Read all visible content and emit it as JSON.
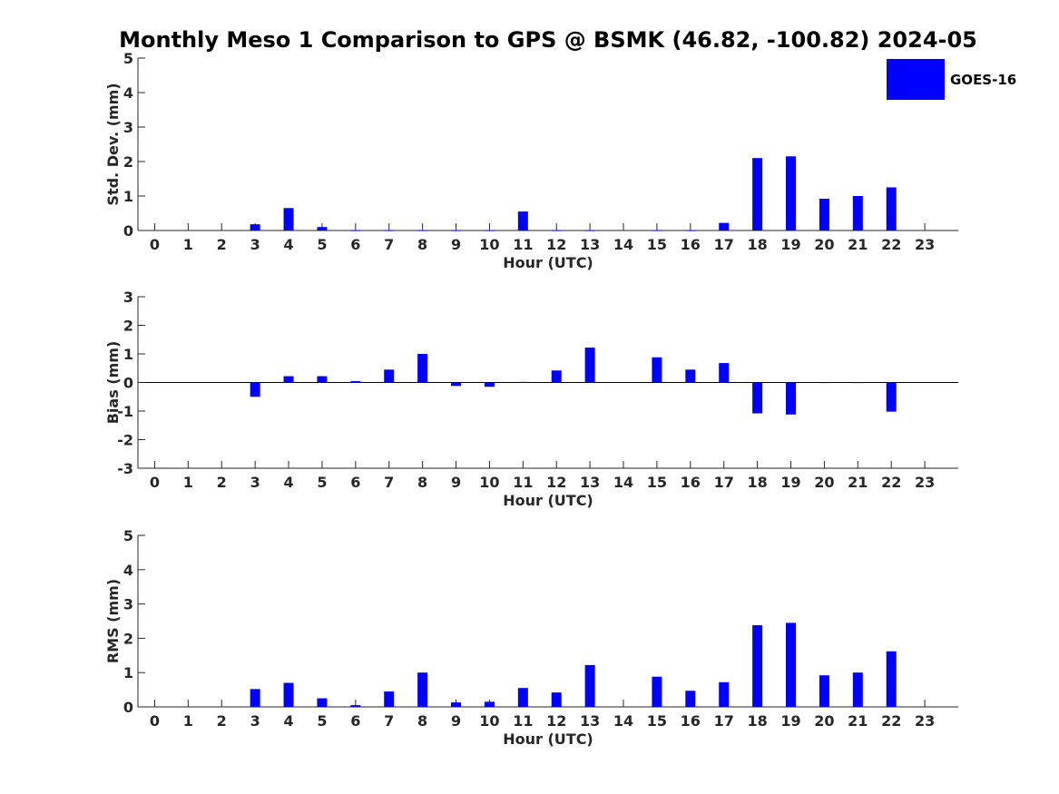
{
  "title": "Monthly Meso 1 Comparison to GPS @ BSMK (46.82, -100.82) 2024-05",
  "legend": {
    "label": "GOES-16",
    "position": "top-right"
  },
  "colors": {
    "bar": "#0000ff",
    "axis": "#262626",
    "zero_line": "#000000"
  },
  "chart_data": [
    {
      "type": "bar",
      "title": "Monthly Meso 1 Comparison to GPS @ BSMK (46.82, -100.82) 2024-05",
      "xlabel": "Hour (UTC)",
      "ylabel": "Std. Dev. (mm)",
      "ylim": [
        0,
        5
      ],
      "yticks": [
        "0",
        "1",
        "2",
        "3",
        "4",
        "5"
      ],
      "categories": [
        "0",
        "1",
        "2",
        "3",
        "4",
        "5",
        "6",
        "7",
        "8",
        "9",
        "10",
        "11",
        "12",
        "13",
        "14",
        "15",
        "16",
        "17",
        "18",
        "19",
        "20",
        "21",
        "22",
        "23"
      ],
      "series": [
        {
          "name": "GOES-16",
          "values": [
            null,
            null,
            null,
            0.18,
            0.65,
            0.1,
            0,
            0,
            0,
            0,
            0,
            0.55,
            0,
            0,
            null,
            0,
            0,
            0.22,
            2.1,
            2.15,
            0.92,
            1.0,
            1.25,
            null
          ]
        }
      ]
    },
    {
      "type": "bar",
      "xlabel": "Hour (UTC)",
      "ylabel": "Bias (mm)",
      "ylim": [
        -3,
        3
      ],
      "yticks": [
        "-3",
        "-2",
        "-1",
        "0",
        "1",
        "2",
        "3"
      ],
      "categories": [
        "0",
        "1",
        "2",
        "3",
        "4",
        "5",
        "6",
        "7",
        "8",
        "9",
        "10",
        "11",
        "12",
        "13",
        "14",
        "15",
        "16",
        "17",
        "18",
        "19",
        "20",
        "21",
        "22",
        "23"
      ],
      "series": [
        {
          "name": "GOES-16",
          "values": [
            null,
            null,
            null,
            -0.5,
            0.22,
            0.22,
            0.05,
            0.45,
            1.0,
            -0.12,
            -0.15,
            0.02,
            0.42,
            1.22,
            null,
            0.88,
            0.45,
            0.68,
            -1.08,
            -1.12,
            0,
            0,
            -1.02,
            null
          ]
        }
      ]
    },
    {
      "type": "bar",
      "xlabel": "Hour (UTC)",
      "ylabel": "RMS (mm)",
      "ylim": [
        0,
        5
      ],
      "yticks": [
        "0",
        "1",
        "2",
        "3",
        "4",
        "5"
      ],
      "categories": [
        "0",
        "1",
        "2",
        "3",
        "4",
        "5",
        "6",
        "7",
        "8",
        "9",
        "10",
        "11",
        "12",
        "13",
        "14",
        "15",
        "16",
        "17",
        "18",
        "19",
        "20",
        "21",
        "22",
        "23"
      ],
      "series": [
        {
          "name": "GOES-16",
          "values": [
            null,
            null,
            null,
            0.52,
            0.7,
            0.25,
            0.05,
            0.45,
            1.0,
            0.13,
            0.15,
            0.55,
            0.42,
            1.22,
            null,
            0.88,
            0.47,
            0.72,
            2.38,
            2.45,
            0.92,
            1.0,
            1.62,
            null
          ]
        }
      ]
    }
  ]
}
